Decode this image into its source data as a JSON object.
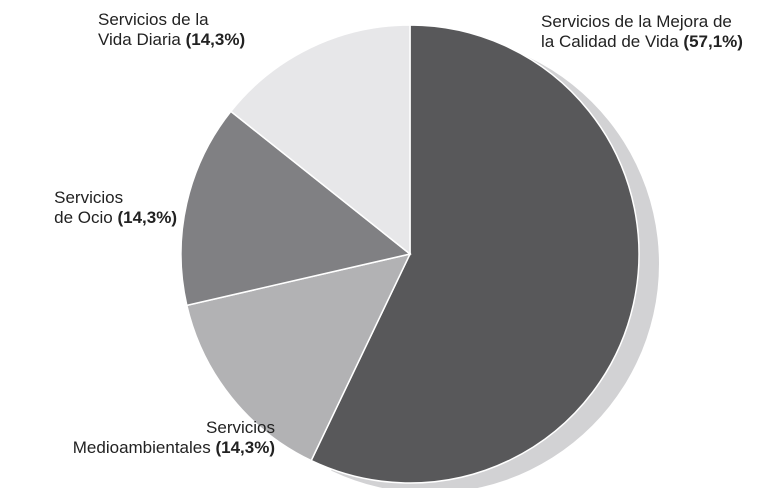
{
  "chart_data": {
    "type": "pie",
    "categories": [
      "Servicios de la Mejora de\nla Calidad de Vida",
      "Servicios\nMedioambientales",
      "Servicios\nde Ocio",
      "Servicios de la\nVida Diaria"
    ],
    "values": [
      57.1,
      14.3,
      14.3,
      14.3
    ],
    "value_labels": [
      "(57,1%)",
      "(14,3%)",
      "(14,3%)",
      "(14,3%)"
    ],
    "colors": [
      "#58585a",
      "#b2b2b4",
      "#808083",
      "#e7e7e9"
    ]
  }
}
